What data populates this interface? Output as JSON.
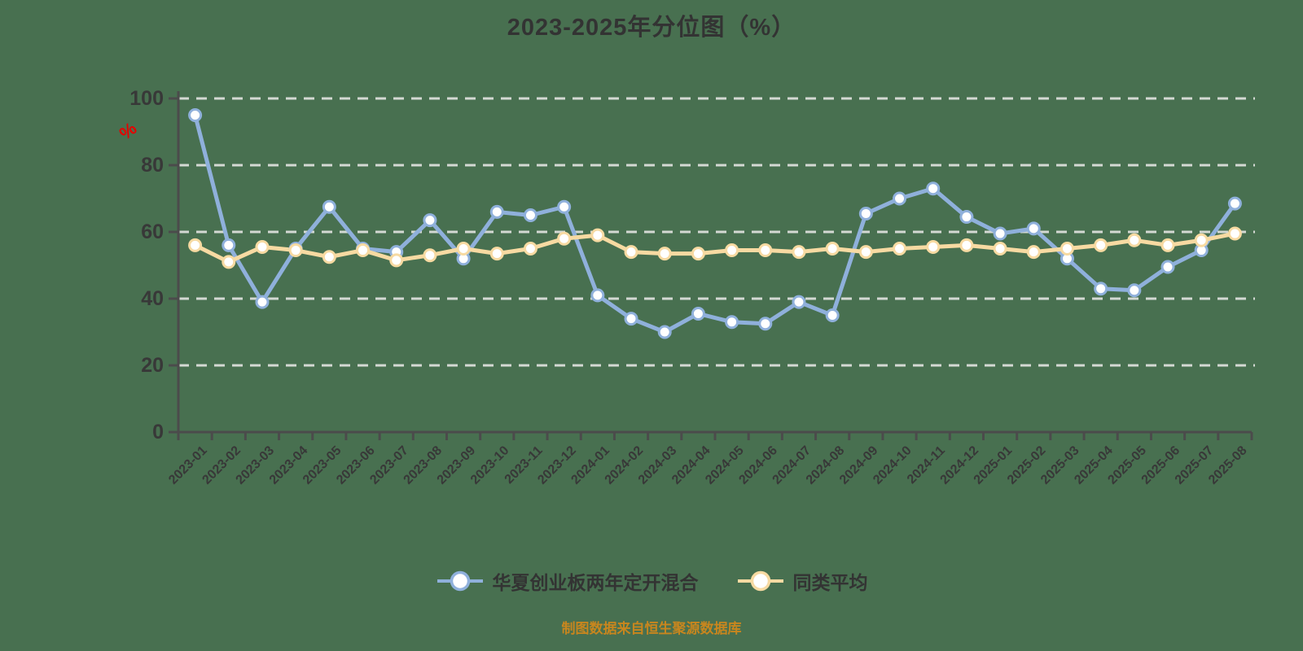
{
  "chart_data": {
    "type": "line",
    "title": "2023-2025年分位图（%）",
    "ylabel": "%",
    "xlabel": "",
    "ylim": [
      0,
      100
    ],
    "y_ticks": [
      0,
      20,
      40,
      60,
      80,
      100
    ],
    "grid": "horizontal dashed",
    "legend_position": "bottom",
    "categories": [
      "2023-01",
      "2023-02",
      "2023-03",
      "2023-04",
      "2023-05",
      "2023-06",
      "2023-07",
      "2023-08",
      "2023-09",
      "2023-10",
      "2023-11",
      "2023-12",
      "2024-01",
      "2024-02",
      "2024-03",
      "2024-04",
      "2024-05",
      "2024-06",
      "2024-07",
      "2024-08",
      "2024-09",
      "2024-10",
      "2024-11",
      "2024-12",
      "2025-01",
      "2025-02",
      "2025-03",
      "2025-04",
      "2025-05",
      "2025-06",
      "2025-07",
      "2025-08"
    ],
    "series": [
      {
        "name": "华夏创业板两年定开混合",
        "color": "#8FB0DB",
        "values": [
          95,
          56,
          39,
          55,
          67.5,
          55,
          54,
          63.5,
          52,
          66,
          65,
          67.5,
          41,
          34,
          30,
          35.5,
          33,
          32.5,
          39,
          35,
          65.5,
          70,
          73,
          64.5,
          59.5,
          61,
          52,
          43,
          42.5,
          49.5,
          54.5,
          68.5
        ]
      },
      {
        "name": "同类平均",
        "color": "#F7DAA2",
        "values": [
          56,
          51,
          55.5,
          54.5,
          52.5,
          54.5,
          51.5,
          53,
          55,
          53.5,
          55,
          58,
          59,
          54,
          53.5,
          53.5,
          54.5,
          54.5,
          54,
          55,
          54,
          55,
          55.5,
          56,
          55,
          54,
          55,
          56,
          57.5,
          56,
          57.5,
          59.5
        ]
      }
    ]
  },
  "footer": {
    "text": "制图数据来自恒生聚源数据库"
  },
  "colors": {
    "background": "#487050",
    "grid": "#D4D9D3",
    "axis": "#4B4B4B",
    "axis_label": "#383838",
    "title": "#333333",
    "unit_label": "#E60000",
    "footer": "#C8861E",
    "marker_fill": "#FFFFFF"
  }
}
